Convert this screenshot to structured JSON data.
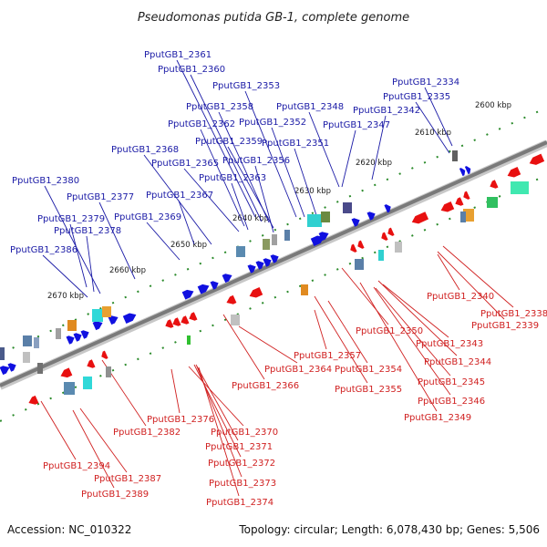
{
  "title": "Pseudomonas putida GB-1, complete genome",
  "footer": {
    "accession": "Accession: NC_010322",
    "summary": "Topology: circular; Length: 6,078,430 bp; Genes: 5,506"
  },
  "colors": {
    "backbone": "#7a7a7a",
    "forward_gene": "#1010e0",
    "reverse_gene": "#e81010",
    "forward_label": "#1a1aa6",
    "reverse_label": "#d02020",
    "scale_dots": "#2a8a2a"
  },
  "scale_labels": [
    "2600 kbp",
    "2610 kbp",
    "2620 kbp",
    "2630 kbp",
    "2640 kbp",
    "2650 kbp",
    "2660 kbp",
    "2670 kbp"
  ],
  "forward_genes": [
    "PputGB1_2361",
    "PputGB1_2360",
    "PputGB1_2353",
    "PputGB1_2334",
    "PputGB1_2335",
    "PputGB1_2358",
    "PputGB1_2348",
    "PputGB1_2342",
    "PputGB1_2362",
    "PputGB1_2352",
    "PputGB1_2347",
    "PputGB1_2359",
    "PputGB1_2351",
    "PputGB1_2368",
    "PputGB1_2365",
    "PputGB1_2356",
    "PputGB1_2363",
    "PputGB1_2380",
    "PputGB1_2377",
    "PputGB1_2367",
    "PputGB1_2379",
    "PputGB1_2369",
    "PputGB1_2378",
    "PputGB1_2386"
  ],
  "reverse_genes": [
    "PputGB1_2340",
    "PputGB1_2338",
    "PputGB1_2339",
    "PputGB1_2350",
    "PputGB1_2343",
    "PputGB1_2357",
    "PputGB1_2344",
    "PputGB1_2364",
    "PputGB1_2354",
    "PputGB1_2345",
    "PputGB1_2366",
    "PputGB1_2355",
    "PputGB1_2346",
    "PputGB1_2349",
    "PputGB1_2376",
    "PputGB1_2382",
    "PputGB1_2370",
    "PputGB1_2371",
    "PputGB1_2394",
    "PputGB1_2372",
    "PputGB1_2387",
    "PputGB1_2373",
    "PputGB1_2389",
    "PputGB1_2374"
  ]
}
